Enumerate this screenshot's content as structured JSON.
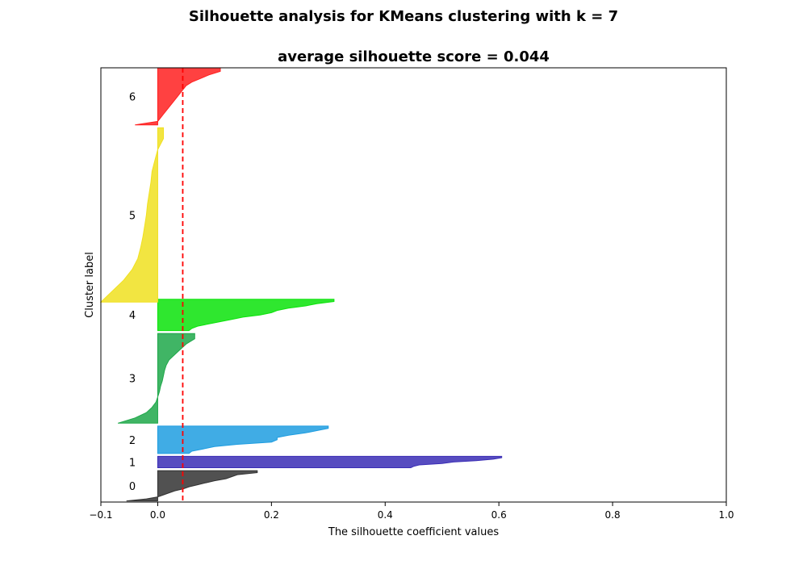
{
  "figure": {
    "suptitle": "Silhouette analysis for KMeans clustering with k = 7"
  },
  "chart_data": {
    "type": "area",
    "title": "average silhouette score = 0.044",
    "xlabel": "The silhouette coefficient values",
    "ylabel": "Cluster label",
    "xlim": [
      -0.1,
      1.0
    ],
    "ylim": [
      0,
      760
    ],
    "xticks": [
      -0.1,
      0.0,
      0.2,
      0.4,
      0.6,
      0.8,
      1.0
    ],
    "xtick_labels": [
      "−0.1",
      "0.0",
      "0.2",
      "0.4",
      "0.6",
      "0.8",
      "1.0"
    ],
    "yticks": [],
    "grid": false,
    "average_score": 0.044,
    "average_line": {
      "color": "#ff0000",
      "style": "dashed"
    },
    "clusters": [
      {
        "label": "0",
        "y_lower": 2,
        "y_upper": 55,
        "color": "#333333",
        "values_sorted_desc": [
          0.175,
          0.175,
          0.14,
          0.13,
          0.12,
          0.1,
          0.085,
          0.07,
          0.055,
          0.045,
          0.03,
          0.02,
          0.01,
          0.0,
          -0.02,
          -0.055
        ]
      },
      {
        "label": "1",
        "y_lower": 60,
        "y_upper": 80,
        "color": "#3a2db5",
        "values_sorted_desc": [
          0.605,
          0.605,
          0.59,
          0.56,
          0.52,
          0.5,
          0.46,
          0.45,
          0.445
        ]
      },
      {
        "label": "2",
        "y_lower": 85,
        "y_upper": 133,
        "color": "#1f9de0",
        "values_sorted_desc": [
          0.3,
          0.3,
          0.28,
          0.26,
          0.23,
          0.21,
          0.21,
          0.2,
          0.14,
          0.1,
          0.08,
          0.06,
          0.055
        ]
      },
      {
        "label": "3",
        "y_lower": 138,
        "y_upper": 295,
        "color": "#1fa84a",
        "values_sorted_desc": [
          0.065,
          0.065,
          0.05,
          0.04,
          0.03,
          0.02,
          0.015,
          0.012,
          0.01,
          0.008,
          0.005,
          0.003,
          0.0,
          -0.003,
          -0.01,
          -0.02,
          -0.04,
          -0.07
        ]
      },
      {
        "label": "4",
        "y_lower": 300,
        "y_upper": 355,
        "color": "#0be30b",
        "values_sorted_desc": [
          0.31,
          0.31,
          0.28,
          0.26,
          0.23,
          0.21,
          0.2,
          0.18,
          0.15,
          0.13,
          0.11,
          0.09,
          0.07,
          0.06,
          0.055
        ]
      },
      {
        "label": "5",
        "y_lower": 350,
        "y_upper": 655,
        "color": "#f0e020",
        "values_sorted_desc": [
          0.01,
          0.01,
          0.0,
          -0.005,
          -0.01,
          -0.012,
          -0.015,
          -0.018,
          -0.02,
          -0.023,
          -0.026,
          -0.03,
          -0.035,
          -0.045,
          -0.06,
          -0.08,
          -0.1
        ]
      },
      {
        "label": "6",
        "y_lower": 660,
        "y_upper": 760,
        "color": "#ff2020",
        "values_sorted_desc": [
          0.11,
          0.11,
          0.09,
          0.075,
          0.06,
          0.05,
          0.045,
          0.04,
          0.035,
          0.03,
          0.025,
          0.02,
          0.015,
          0.01,
          0.005,
          0.0,
          -0.04
        ]
      }
    ]
  }
}
